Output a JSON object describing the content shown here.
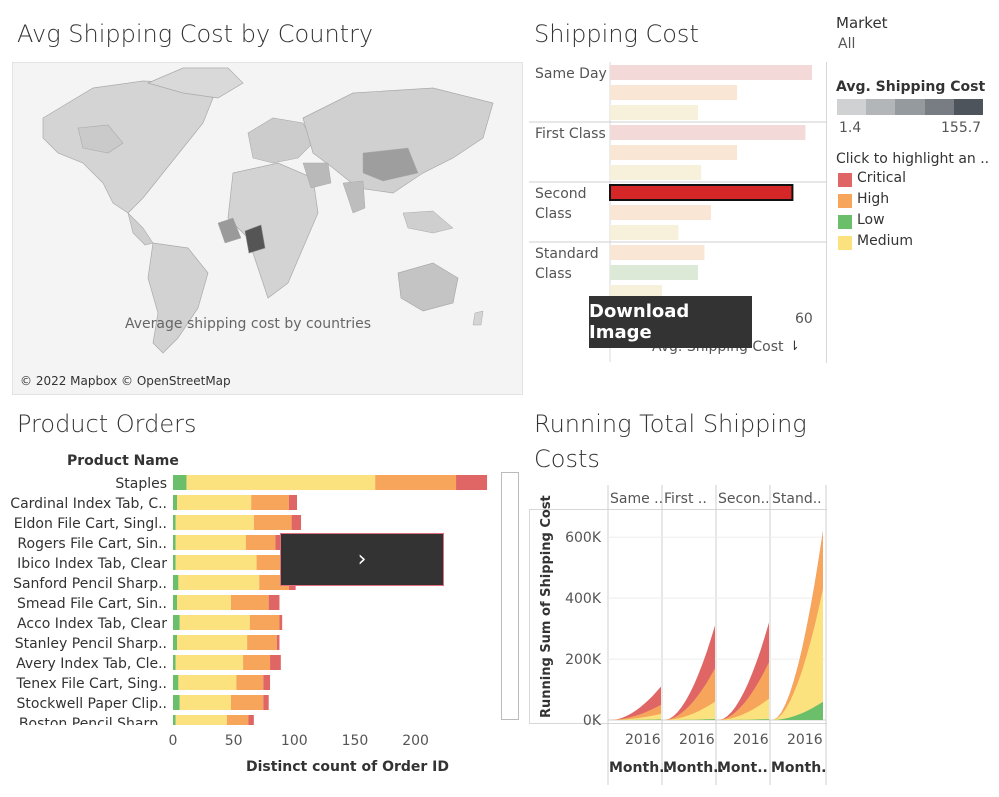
{
  "map_panel": {
    "title": "Avg Shipping Cost by Country",
    "caption": "Average shipping cost by countries",
    "credit": "© 2022 Mapbox © OpenStreetMap"
  },
  "shipping_panel": {
    "title": "Shipping Cost",
    "axis_tick": "60",
    "axis_label": "Avg. Shipping Cost",
    "download_label": "Download Image",
    "chart_data": {
      "type": "bar",
      "categories": [
        "Same Day",
        "First Class",
        "Second Class",
        "Standard Class"
      ],
      "series_order": [
        "Critical",
        "High",
        "Medium"
      ],
      "rows": [
        {
          "mode": "Same Day",
          "bars": [
            {
              "priority": "Critical",
              "value": 62
            },
            {
              "priority": "High",
              "value": 39
            },
            {
              "priority": "Medium",
              "value": 27
            }
          ]
        },
        {
          "mode": "First Class",
          "bars": [
            {
              "priority": "Critical",
              "value": 60
            },
            {
              "priority": "High",
              "value": 39
            },
            {
              "priority": "Medium",
              "value": 28
            }
          ]
        },
        {
          "mode": "Second Class",
          "bars": [
            {
              "priority": "Critical",
              "value": 56
            },
            {
              "priority": "High",
              "value": 31
            },
            {
              "priority": "Medium",
              "value": 21
            }
          ]
        },
        {
          "mode": "Standard Class",
          "bars": [
            {
              "priority": "High",
              "value": 29
            },
            {
              "priority": "Low",
              "value": 27
            },
            {
              "priority": "Medium",
              "value": 16
            }
          ]
        }
      ],
      "xlim": [
        0,
        66
      ]
    }
  },
  "legend": {
    "market_label": "Market",
    "market_value": "All",
    "avg_cost_label": "Avg. Shipping Cost",
    "avg_cost_min": "1.4",
    "avg_cost_max": "155.7",
    "highlight_label": "Click to highlight an ..",
    "items": [
      {
        "label": "Critical",
        "color": "#e06666"
      },
      {
        "label": "High",
        "color": "#f6a55b"
      },
      {
        "label": "Low",
        "color": "#6bbf6b"
      },
      {
        "label": "Medium",
        "color": "#fbe27e"
      }
    ]
  },
  "orders_panel": {
    "title": "Product Orders",
    "column_header": "Product Name",
    "x_label": "Distinct count of Order ID",
    "chart_data": {
      "type": "bar",
      "stacked": true,
      "categories": [
        "Staples",
        "Cardinal Index Tab, C..",
        "Eldon File Cart, Singl..",
        "Rogers File Cart, Sin..",
        "Ibico Index Tab, Clear",
        "Sanford Pencil Sharp..",
        "Smead File Cart, Sin..",
        "Acco Index Tab, Clear",
        "Stanley Pencil Sharp..",
        "Avery Index Tab, Cle..",
        "Tenex File Cart, Sing..",
        "Stockwell Paper Clip..",
        "Boston Pencil Sharp.."
      ],
      "series": [
        {
          "name": "Low",
          "values": [
            10,
            3,
            2,
            2,
            2,
            4,
            3,
            5,
            3,
            2,
            4,
            5,
            2
          ]
        },
        {
          "name": "Medium",
          "values": [
            140,
            55,
            58,
            52,
            60,
            60,
            40,
            52,
            52,
            50,
            43,
            38,
            38
          ]
        },
        {
          "name": "High",
          "values": [
            60,
            28,
            28,
            22,
            20,
            22,
            28,
            22,
            22,
            20,
            20,
            24,
            16
          ]
        },
        {
          "name": "Critical",
          "values": [
            23,
            6,
            7,
            5,
            5,
            5,
            8,
            2,
            2,
            8,
            5,
            4,
            4
          ]
        }
      ],
      "xticks": [
        "0",
        "50",
        "100",
        "150",
        "200"
      ],
      "xlim": [
        0,
        230
      ]
    }
  },
  "running_panel": {
    "title_line1": "Running Total Shipping",
    "title_line2": "Costs",
    "y_label": "Running Sum of Shipping Cost",
    "column_headers": [
      "Same ..",
      "First ..",
      "Secon..",
      "Stand.."
    ],
    "year_labels": [
      "2016",
      "2016",
      "2016",
      "2016"
    ],
    "bottom_labels": [
      "Month..",
      "Month..",
      "Mont..",
      "Month.."
    ],
    "chart_data": {
      "type": "area",
      "yticks": [
        "0K",
        "200K",
        "400K",
        "600K"
      ],
      "ylim": [
        0,
        640000
      ],
      "panels": [
        {
          "mode": "Same Day",
          "totals": {
            "Low": 2000,
            "Medium": 20000,
            "High": 50000,
            "Critical": 110000
          }
        },
        {
          "mode": "First Class",
          "totals": {
            "Low": 3000,
            "Medium": 60000,
            "High": 170000,
            "Critical": 310000
          }
        },
        {
          "mode": "Second Class",
          "totals": {
            "Low": 3000,
            "Medium": 70000,
            "High": 190000,
            "Critical": 320000
          }
        },
        {
          "mode": "Standard Class",
          "totals": {
            "Low": 60000,
            "Medium": 430000,
            "High": 620000,
            "Critical": 620000
          }
        }
      ]
    }
  }
}
